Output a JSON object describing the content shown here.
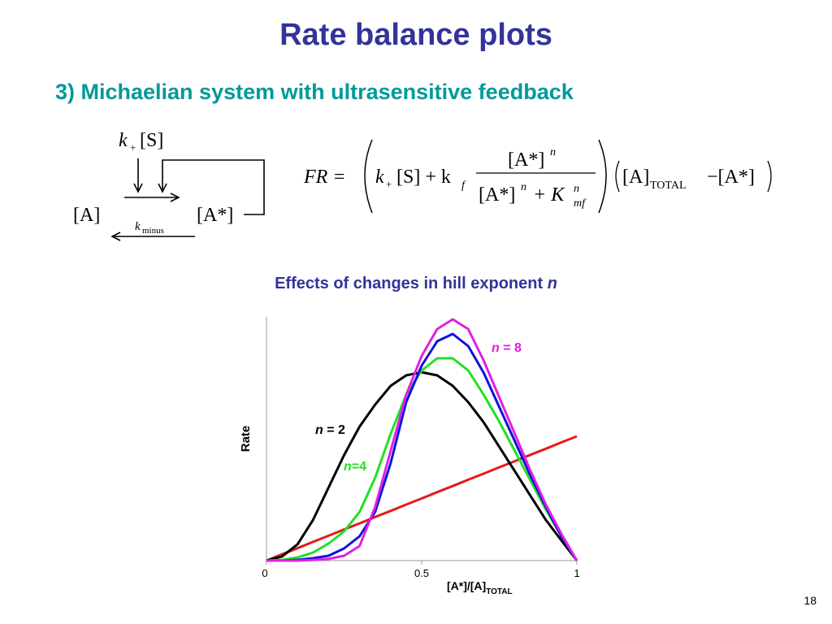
{
  "slide": {
    "title": "Rate balance plots",
    "subtitle": "3) Michaelian system with ultrasensitive feedback",
    "page": "18"
  },
  "diagram": {
    "k": "k",
    "k_sub": "+",
    "s": "[S]",
    "a": "[A]",
    "a_star": "[A*]",
    "k_minus": "k",
    "k_minus_sub": "minus"
  },
  "equation": {
    "lhs": "FR =",
    "k": "k",
    "k_sub": "+",
    "s_plus_k": "[S] + k",
    "f": "f",
    "num": "[A*]",
    "num_exp": "n",
    "den1": "[A*]",
    "den1_exp": "n",
    "den_plus_k": "+ K",
    "den_exp": "n",
    "den_sub": "mf",
    "a": "[A]",
    "a_sub": "TOTAL",
    "minus": "−[A*]"
  },
  "chart_data": {
    "type": "line",
    "title": "Effects of changes in hill exponent",
    "title_var": "n",
    "ylabel": "Rate",
    "xlabel": "[A*]/[A]",
    "xlabel_sub": "TOTAL",
    "x": [
      0,
      0.05,
      0.1,
      0.15,
      0.2,
      0.25,
      0.3,
      0.35,
      0.4,
      0.45,
      0.5,
      0.55,
      0.6,
      0.65,
      0.7,
      0.75,
      0.8,
      0.85,
      0.9,
      0.95,
      1
    ],
    "xlim": [
      0,
      1
    ],
    "xticks": [
      0,
      0.5,
      1
    ],
    "ylim": [
      0,
      1
    ],
    "series": [
      {
        "color": "#e31a1c",
        "values": [
          0,
          0.026,
          0.051,
          0.077,
          0.102,
          0.128,
          0.153,
          0.179,
          0.204,
          0.23,
          0.255,
          0.281,
          0.306,
          0.332,
          0.357,
          0.383,
          0.408,
          0.434,
          0.459,
          0.485,
          0.51
        ]
      },
      {
        "color": "#000000",
        "label": [
          "n",
          " = 2"
        ],
        "values": [
          0,
          0.017,
          0.067,
          0.167,
          0.3,
          0.433,
          0.55,
          0.64,
          0.717,
          0.76,
          0.773,
          0.76,
          0.717,
          0.65,
          0.567,
          0.467,
          0.367,
          0.267,
          0.167,
          0.083,
          0
        ]
      },
      {
        "color": "#22e022",
        "label": [
          "n",
          "=4"
        ],
        "values": [
          0,
          0.003,
          0.013,
          0.033,
          0.07,
          0.12,
          0.2,
          0.34,
          0.52,
          0.68,
          0.78,
          0.83,
          0.83,
          0.78,
          0.68,
          0.57,
          0.45,
          0.33,
          0.21,
          0.1,
          0
        ]
      },
      {
        "color": "#1010e0",
        "values": [
          0,
          0,
          0.003,
          0.01,
          0.02,
          0.05,
          0.1,
          0.2,
          0.4,
          0.65,
          0.8,
          0.9,
          0.93,
          0.88,
          0.77,
          0.63,
          0.49,
          0.35,
          0.22,
          0.1,
          0
        ]
      },
      {
        "color": "#e020e0",
        "label": [
          "n",
          " = 8"
        ],
        "values": [
          0,
          0,
          0,
          0.003,
          0.007,
          0.02,
          0.06,
          0.22,
          0.45,
          0.68,
          0.84,
          0.95,
          0.99,
          0.95,
          0.82,
          0.67,
          0.52,
          0.37,
          0.23,
          0.11,
          0
        ]
      }
    ]
  }
}
